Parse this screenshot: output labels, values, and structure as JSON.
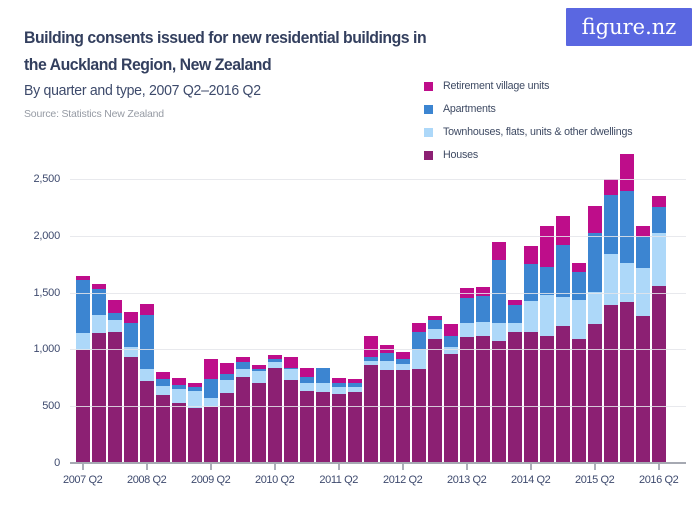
{
  "logo": {
    "text": "figure.nz",
    "bg_color": "#5A67E1",
    "text_color": "#FFFFFF"
  },
  "header": {
    "title_line1": "Building consents issued for new residential buildings in",
    "title_line2": "the Auckland Region, New Zealand",
    "subtitle": "By quarter and type, 2007 Q2–2016 Q2",
    "source": "Source: Statistics New Zealand"
  },
  "legend": {
    "items": [
      {
        "label": "Retirement village units",
        "color": "#BE0D8A"
      },
      {
        "label": "Apartments",
        "color": "#3C85D1"
      },
      {
        "label": "Townhouses, flats, units & other dwellings",
        "color": "#ADD8F9"
      },
      {
        "label": "Houses",
        "color": "#8C2073"
      }
    ]
  },
  "chart_data": {
    "type": "bar",
    "stacked": true,
    "title": "Building consents issued for new residential buildings in the Auckland Region, New Zealand",
    "subtitle": "By quarter and type, 2007 Q2–2016 Q2",
    "source": "Source: Statistics New Zealand",
    "xlabel": "",
    "ylabel": "",
    "ylim": [
      0,
      2500
    ],
    "grid": "horizontal",
    "legend_position": "top-right",
    "categories": [
      "2007 Q2",
      "2007 Q3",
      "2007 Q4",
      "2008 Q1",
      "2008 Q2",
      "2008 Q3",
      "2008 Q4",
      "2009 Q1",
      "2009 Q2",
      "2009 Q3",
      "2009 Q4",
      "2010 Q1",
      "2010 Q2",
      "2010 Q3",
      "2010 Q4",
      "2011 Q1",
      "2011 Q2",
      "2011 Q3",
      "2011 Q4",
      "2012 Q1",
      "2012 Q2",
      "2012 Q3",
      "2012 Q4",
      "2013 Q1",
      "2013 Q2",
      "2013 Q3",
      "2013 Q4",
      "2014 Q1",
      "2014 Q2",
      "2014 Q3",
      "2014 Q4",
      "2015 Q1",
      "2015 Q2",
      "2015 Q3",
      "2015 Q4",
      "2016 Q1",
      "2016 Q2"
    ],
    "series": [
      {
        "name": "Houses",
        "color": "#8C2073",
        "values": [
          1000,
          1150,
          1160,
          940,
          725,
          600,
          530,
          485,
          495,
          620,
          760,
          705,
          845,
          735,
          640,
          625,
          610,
          625,
          865,
          825,
          820,
          830,
          1095,
          965,
          1110,
          1120,
          1075,
          1160,
          1155,
          1125,
          1210,
          1095,
          1230,
          1395,
          1425,
          1300,
          1565
        ]
      },
      {
        "name": "Townhouses, flats, units & other dwellings",
        "color": "#ADD8F9",
        "values": [
          150,
          160,
          105,
          90,
          110,
          85,
          125,
          155,
          85,
          115,
          70,
          110,
          50,
          95,
          65,
          85,
          60,
          50,
          40,
          75,
          60,
          170,
          90,
          65,
          125,
          125,
          160,
          75,
          275,
          360,
          255,
          345,
          285,
          455,
          345,
          420,
          465
        ]
      },
      {
        "name": "Apartments",
        "color": "#3C85D1",
        "values": [
          465,
          230,
          60,
          205,
          470,
          60,
          40,
          35,
          160,
          55,
          60,
          20,
          25,
          10,
          60,
          135,
          35,
          35,
          30,
          75,
          40,
          160,
          75,
          95,
          225,
          230,
          560,
          160,
          325,
          245,
          460,
          250,
          520,
          515,
          635,
          275,
          230
        ]
      },
      {
        "name": "Retirement village units",
        "color": "#BE0D8A",
        "values": [
          35,
          45,
          115,
          100,
          100,
          60,
          60,
          35,
          180,
          95,
          45,
          30,
          35,
          95,
          75,
          0,
          50,
          35,
          190,
          70,
          65,
          80,
          40,
          105,
          85,
          80,
          160,
          50,
          160,
          360,
          260,
          75,
          235,
          140,
          325,
          100,
          100
        ]
      }
    ],
    "yticks": [
      0,
      500,
      1000,
      1500,
      2000,
      2500
    ],
    "ytick_labels": [
      "0",
      "500",
      "1,000",
      "1,500",
      "2,000",
      "2,500"
    ],
    "xtick_indices": [
      0,
      4,
      8,
      12,
      16,
      20,
      24,
      28,
      32,
      36
    ],
    "xtick_labels": [
      "2007 Q2",
      "2008 Q2",
      "2009 Q2",
      "2010 Q2",
      "2011 Q2",
      "2012 Q2",
      "2013 Q2",
      "2014 Q2",
      "2015 Q2",
      "2016 Q2"
    ]
  },
  "theme": {
    "title_color": "#333F5E",
    "subtitle_color": "#3D4A6B",
    "source_color": "#969BA4",
    "legend_text_color": "#3E4A63",
    "axis_label_color": "#3E4A6E",
    "gridline_color": "rgba(228,229,234,0.85)",
    "axis_line_color": "#A6A9B2",
    "tick_color": "#ABAEB8",
    "background": "#FFFFFF"
  }
}
